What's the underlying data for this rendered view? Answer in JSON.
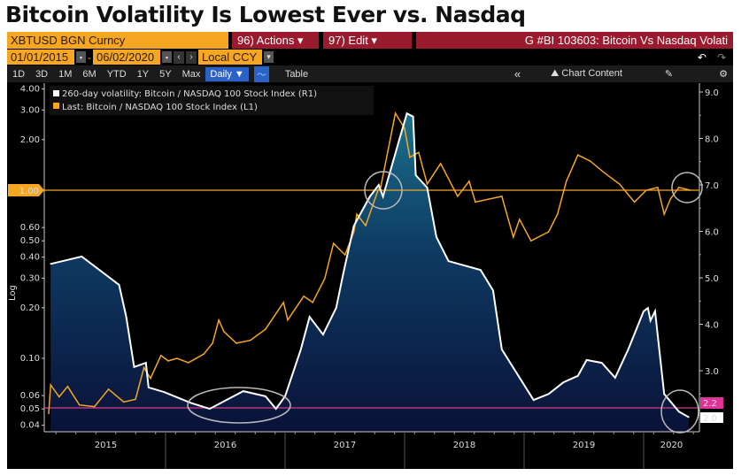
{
  "headline": "Bitcoin Volatility Is Lowest Ever vs. Nasdaq",
  "terminal": {
    "security": "XBTUSD BGN Curncy",
    "actions_label": "96) Actions ▾",
    "edit_label": "97) Edit ▾",
    "chart_title": "G #BI 103603: Bitcoin Vs Nasdaq Volati",
    "start_date": "01/01/2015",
    "end_date": "06/02/2020",
    "date_separator": "-",
    "currency": "Local CCY",
    "periods": [
      "1D",
      "3D",
      "1M",
      "6M",
      "YTD",
      "1Y",
      "5Y",
      "Max"
    ],
    "frequency": "Daily ▼",
    "table_label": "Table",
    "collapse_label": "«",
    "chart_content_label": "Chart Content",
    "undo_icon": "undo-icon",
    "redo_icon": "redo-icon",
    "settings_icon": "gear-icon",
    "colors": {
      "accent_orange": "#f5a623",
      "header_red": "#9b1b2e",
      "volatility_line": "#ffffff",
      "ratio_line": "#f5a623",
      "reference_line": "#d63c8c"
    }
  },
  "chart_data": {
    "type": "line",
    "xlabel": "",
    "x_ticks": [
      "2015",
      "2016",
      "2017",
      "2018",
      "2019",
      "2020"
    ],
    "left_axis": {
      "scale": "log",
      "ticks": [
        "4.00",
        "3.00",
        "2.00",
        "1.00",
        "0.60",
        "0.50",
        "0.40",
        "0.30",
        "0.20",
        "0.10",
        "0.06",
        "0.05",
        "0.04"
      ],
      "axis_label": "Log",
      "highlight": "1.00"
    },
    "right_axis": {
      "scale": "linear",
      "ticks": [
        "9.0",
        "8.0",
        "7.0",
        "6.0",
        "5.0",
        "4.0",
        "3.0"
      ],
      "last_value_labels": [
        "2.2",
        "2.0"
      ]
    },
    "series": [
      {
        "name": "260-day volatility: Bitcoin / NASDAQ 100 Stock Index (R1)",
        "axis": "right",
        "color": "#ffffff",
        "points": [
          [
            "2015-01-15",
            5.3
          ],
          [
            "2015-04-20",
            5.46
          ],
          [
            "2015-08-12",
            4.85
          ],
          [
            "2015-09-03",
            4.16
          ],
          [
            "2015-09-27",
            3.08
          ],
          [
            "2015-11-02",
            3.17
          ],
          [
            "2015-11-10",
            2.64
          ],
          [
            "2015-12-27",
            2.54
          ],
          [
            "2016-03-17",
            2.31
          ],
          [
            "2016-05-15",
            2.18
          ],
          [
            "2016-08-26",
            2.56
          ],
          [
            "2016-11-02",
            2.45
          ],
          [
            "2016-12-04",
            2.18
          ],
          [
            "2017-01-01",
            2.45
          ],
          [
            "2017-02-18",
            3.46
          ],
          [
            "2017-03-17",
            4.16
          ],
          [
            "2017-04-27",
            3.78
          ],
          [
            "2017-06-06",
            4.35
          ],
          [
            "2017-06-28",
            5.1
          ],
          [
            "2017-07-30",
            6.12
          ],
          [
            "2017-09-17",
            6.75
          ],
          [
            "2017-10-14",
            7.0
          ],
          [
            "2017-10-27",
            6.75
          ],
          [
            "2017-12-20",
            8.08
          ],
          [
            "2018-01-08",
            8.54
          ],
          [
            "2018-01-27",
            8.47
          ],
          [
            "2018-02-04",
            7.21
          ],
          [
            "2018-03-11",
            6.94
          ],
          [
            "2018-04-08",
            5.88
          ],
          [
            "2018-05-15",
            5.36
          ],
          [
            "2018-08-21",
            5.17
          ],
          [
            "2018-09-28",
            4.73
          ],
          [
            "2018-10-25",
            3.46
          ],
          [
            "2019-01-30",
            2.37
          ],
          [
            "2019-03-17",
            2.5
          ],
          [
            "2019-05-01",
            2.75
          ],
          [
            "2019-06-14",
            2.89
          ],
          [
            "2019-07-11",
            3.23
          ],
          [
            "2019-08-26",
            3.17
          ],
          [
            "2019-10-06",
            2.85
          ],
          [
            "2019-11-15",
            3.46
          ],
          [
            "2020-01-01",
            4.28
          ],
          [
            "2020-01-14",
            4.35
          ],
          [
            "2020-01-22",
            4.08
          ],
          [
            "2020-02-05",
            4.28
          ],
          [
            "2020-03-04",
            2.5
          ],
          [
            "2020-04-18",
            2.12
          ],
          [
            "2020-05-18",
            2.0
          ]
        ]
      },
      {
        "name": "Last: Bitcoin / NASDAQ 100 Stock Index (L1)",
        "axis": "left",
        "color": "#f5a623",
        "points": [
          [
            "2015-01-09",
            0.047
          ],
          [
            "2015-01-15",
            0.0695
          ],
          [
            "2015-02-10",
            0.059
          ],
          [
            "2015-03-08",
            0.068
          ],
          [
            "2015-04-13",
            0.0528
          ],
          [
            "2015-05-29",
            0.0516
          ],
          [
            "2015-07-11",
            0.0655
          ],
          [
            "2015-08-26",
            0.055
          ],
          [
            "2015-10-01",
            0.057
          ],
          [
            "2015-10-27",
            0.088
          ],
          [
            "2015-11-16",
            0.076
          ],
          [
            "2015-12-18",
            0.104
          ],
          [
            "2016-01-09",
            0.0965
          ],
          [
            "2016-02-05",
            0.1
          ],
          [
            "2016-03-11",
            0.0942
          ],
          [
            "2016-04-27",
            0.106
          ],
          [
            "2016-05-24",
            0.123
          ],
          [
            "2016-06-12",
            0.169
          ],
          [
            "2016-06-28",
            0.144
          ],
          [
            "2016-08-05",
            0.123
          ],
          [
            "2016-09-17",
            0.128
          ],
          [
            "2016-11-02",
            0.149
          ],
          [
            "2016-12-27",
            0.215
          ],
          [
            "2017-01-09",
            0.169
          ],
          [
            "2017-02-27",
            0.234
          ],
          [
            "2017-03-26",
            0.215
          ],
          [
            "2017-05-02",
            0.298
          ],
          [
            "2017-05-29",
            0.483
          ],
          [
            "2017-07-03",
            0.413
          ],
          [
            "2017-07-30",
            0.566
          ],
          [
            "2017-08-08",
            0.72
          ],
          [
            "2017-09-04",
            0.616
          ],
          [
            "2017-10-12",
            1.0
          ],
          [
            "2017-10-20",
            1.04
          ],
          [
            "2017-12-04",
            2.87
          ],
          [
            "2018-01-01",
            2.33
          ],
          [
            "2018-01-17",
            1.57
          ],
          [
            "2018-02-13",
            1.68
          ],
          [
            "2018-03-11",
            1.09
          ],
          [
            "2018-04-21",
            1.44
          ],
          [
            "2018-06-12",
            0.92
          ],
          [
            "2018-07-17",
            1.13
          ],
          [
            "2018-08-05",
            0.85
          ],
          [
            "2018-10-25",
            0.92
          ],
          [
            "2018-11-29",
            0.526
          ],
          [
            "2018-12-18",
            0.67
          ],
          [
            "2019-01-22",
            0.5
          ],
          [
            "2019-03-17",
            0.566
          ],
          [
            "2019-04-13",
            0.72
          ],
          [
            "2019-05-10",
            1.13
          ],
          [
            "2019-06-14",
            1.62
          ],
          [
            "2019-07-22",
            1.49
          ],
          [
            "2019-09-03",
            1.27
          ],
          [
            "2019-10-19",
            1.09
          ],
          [
            "2019-12-04",
            0.85
          ],
          [
            "2020-01-09",
            1.0
          ],
          [
            "2020-02-13",
            1.04
          ],
          [
            "2020-03-04",
            0.72
          ],
          [
            "2020-03-23",
            0.886
          ],
          [
            "2020-04-18",
            1.04
          ],
          [
            "2020-05-23",
            1.0
          ]
        ]
      }
    ],
    "reference_lines": [
      {
        "axis": "left",
        "value": 1.0,
        "color": "#f5a623"
      },
      {
        "axis": "right",
        "value": 2.2,
        "color": "#d63c8c"
      }
    ],
    "legend_placement": "top-left",
    "grid": false
  }
}
